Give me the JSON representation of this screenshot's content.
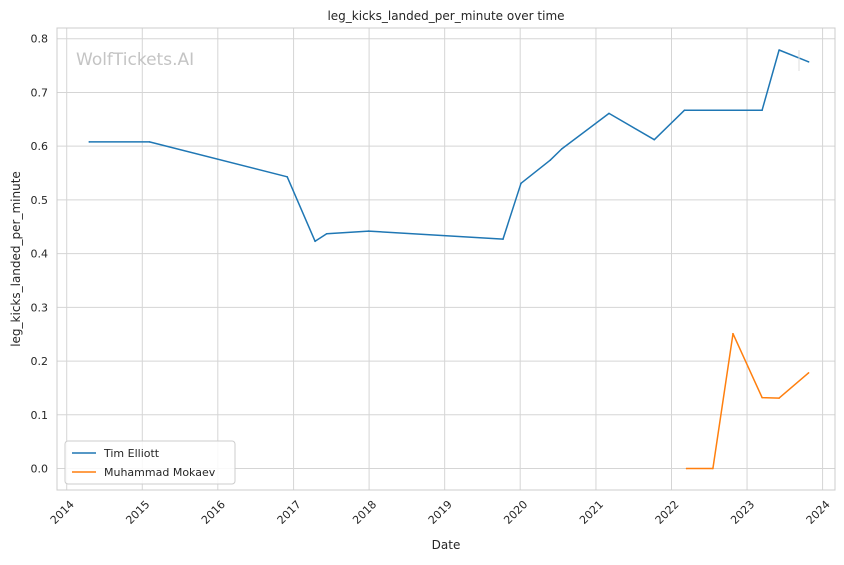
{
  "chart_data": {
    "type": "line",
    "title": "leg_kicks_landed_per_minute over time",
    "xlabel": "Date",
    "ylabel": "leg_kicks_landed_per_minute",
    "watermark": "WolfTickets.AI",
    "xlim": [
      "2013-11-15",
      "2024-03-01"
    ],
    "ylim": [
      -0.04,
      0.82
    ],
    "x_ticks": [
      "2014",
      "2015",
      "2016",
      "2017",
      "2018",
      "2019",
      "2020",
      "2021",
      "2022",
      "2023",
      "2024"
    ],
    "y_ticks": [
      "0.0",
      "0.1",
      "0.2",
      "0.3",
      "0.4",
      "0.5",
      "0.6",
      "0.7",
      "0.8"
    ],
    "grid": true,
    "legend_position": "lower-left",
    "series": [
      {
        "name": "Tim Elliott",
        "color": "#1f77b4",
        "points": [
          {
            "x": "2014-04-20",
            "y": 0.608
          },
          {
            "x": "2015-02-05",
            "y": 0.608
          },
          {
            "x": "2016-12-01",
            "y": 0.543
          },
          {
            "x": "2017-04-15",
            "y": 0.423
          },
          {
            "x": "2017-06-10",
            "y": 0.437
          },
          {
            "x": "2017-12-30",
            "y": 0.442
          },
          {
            "x": "2019-10-10",
            "y": 0.427
          },
          {
            "x": "2020-01-05",
            "y": 0.531
          },
          {
            "x": "2020-05-25",
            "y": 0.574
          },
          {
            "x": "2020-07-20",
            "y": 0.595
          },
          {
            "x": "2021-03-05",
            "y": 0.661
          },
          {
            "x": "2021-10-10",
            "y": 0.612
          },
          {
            "x": "2022-03-05",
            "y": 0.667
          },
          {
            "x": "2023-03-15",
            "y": 0.667
          },
          {
            "x": "2023-06-05",
            "y": 0.779
          },
          {
            "x": "2023-10-25",
            "y": 0.757
          }
        ]
      },
      {
        "name": "Muhammad Mokaev",
        "color": "#ff7f0e",
        "points": [
          {
            "x": "2022-03-15",
            "y": 0.0
          },
          {
            "x": "2022-07-20",
            "y": 0.0
          },
          {
            "x": "2022-10-25",
            "y": 0.251
          },
          {
            "x": "2023-03-15",
            "y": 0.132
          },
          {
            "x": "2023-06-05",
            "y": 0.131
          },
          {
            "x": "2023-10-25",
            "y": 0.178
          }
        ]
      }
    ]
  }
}
